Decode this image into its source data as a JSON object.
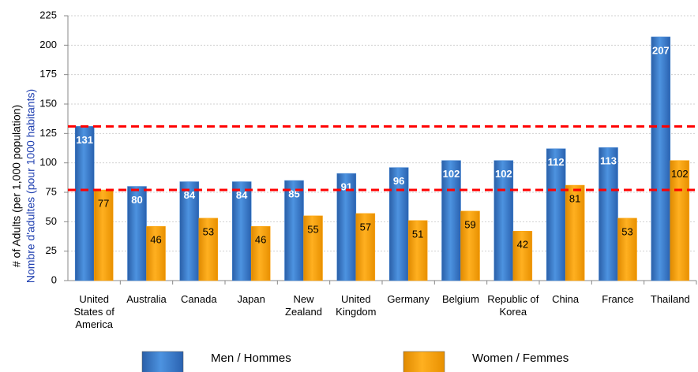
{
  "chart_data": {
    "type": "bar",
    "y_axis_label": "# of Adults (per 1,000 population)",
    "y_axis_label_fr": "Nombre d'adultes (pour 1000 habitants)",
    "categories": [
      "United States of America",
      "Australia",
      "Canada",
      "Japan",
      "New Zealand",
      "United Kingdom",
      "Germany",
      "Belgium",
      "Republic of Korea",
      "China",
      "France",
      "Thailand"
    ],
    "series": [
      {
        "name": "Men / Hommes",
        "color": "#3a7fd0",
        "values": [
          131,
          80,
          84,
          84,
          85,
          91,
          96,
          102,
          102,
          112,
          113,
          207
        ]
      },
      {
        "name": "Women / Femmes",
        "color": "#ffa000",
        "values": [
          77,
          46,
          53,
          46,
          55,
          57,
          51,
          59,
          42,
          81,
          53,
          102
        ]
      }
    ],
    "reference_lines": [
      {
        "value": 131,
        "color": "#ff0000"
      },
      {
        "value": 77,
        "color": "#ff0000"
      }
    ],
    "ylim": [
      0,
      225
    ],
    "yticks": [
      0,
      25,
      50,
      75,
      100,
      125,
      150,
      175,
      200,
      225
    ],
    "grid": true
  }
}
